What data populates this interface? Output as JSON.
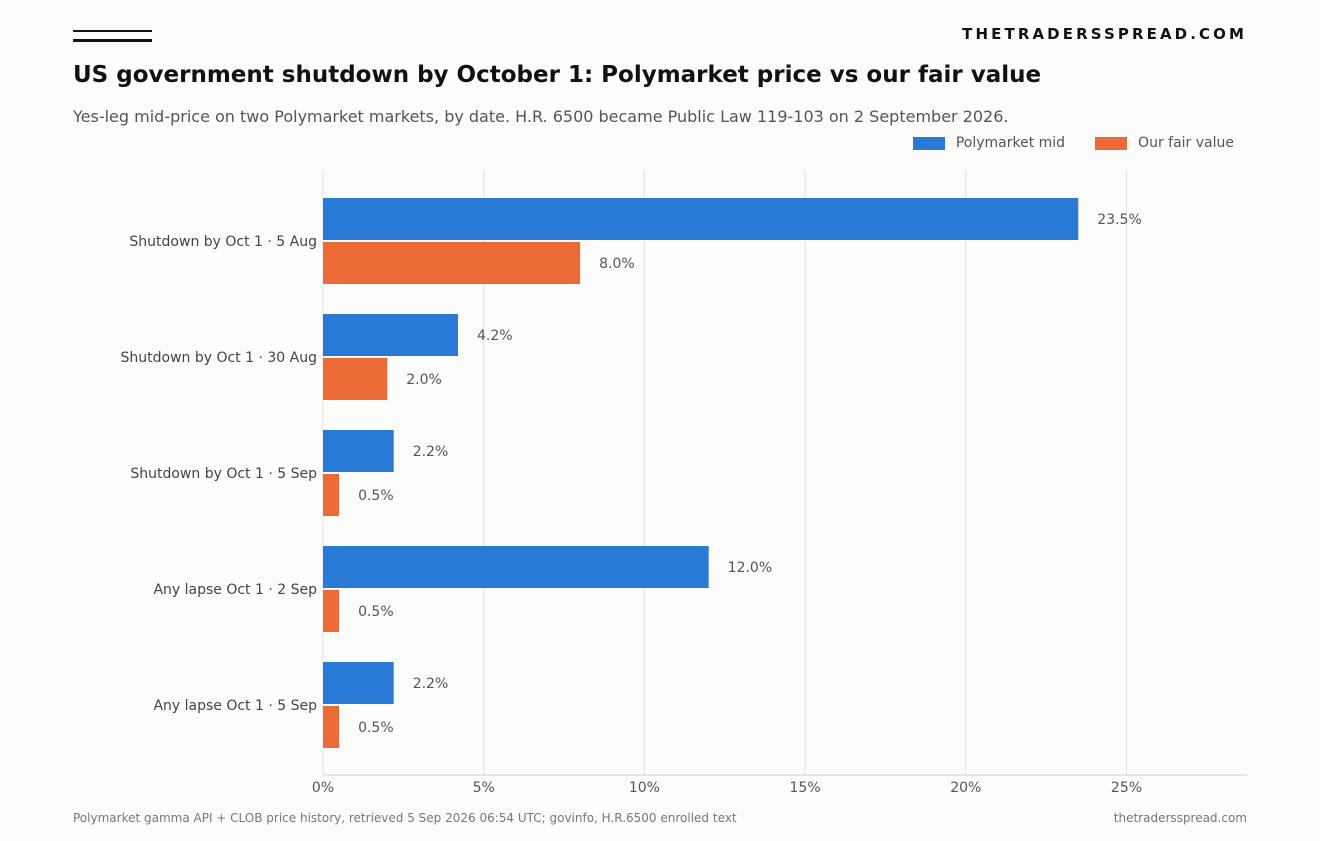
{
  "brand": "THETRADERSSPREAD.COM",
  "footer": {
    "source": "Polymarket gamma API + CLOB price history, retrieved 5 Sep 2026 06:54 UTC; govinfo, H.R.6500 enrolled text",
    "site": "thetradersspread.com"
  },
  "chart_data": {
    "type": "bar",
    "orientation": "horizontal",
    "title": "US government shutdown by October 1: Polymarket price vs our fair value",
    "subtitle": "Yes-leg mid-price on two Polymarket markets, by date. H.R. 6500 became Public Law 119-103 on 2 September 2026.",
    "categories": [
      "Shutdown by Oct 1 · 5 Aug",
      "Shutdown by Oct 1 · 30 Aug",
      "Shutdown by Oct 1 · 5 Sep",
      "Any lapse Oct 1 · 2 Sep",
      "Any lapse Oct 1 · 5 Sep"
    ],
    "series": [
      {
        "name": "Polymarket mid",
        "color": "#2979d6",
        "values": [
          23.5,
          4.2,
          2.2,
          12.0,
          2.2
        ],
        "labels": [
          "23.5%",
          "4.2%",
          "2.2%",
          "12.0%",
          "2.2%"
        ]
      },
      {
        "name": "Our fair value",
        "color": "#ec6a35",
        "values": [
          8.0,
          2.0,
          0.5,
          0.5,
          0.5
        ],
        "labels": [
          "8.0%",
          "2.0%",
          "0.5%",
          "0.5%",
          "0.5%"
        ]
      }
    ],
    "xlim": [
      0,
      28.75
    ],
    "xticks": [
      0,
      5,
      10,
      15,
      20,
      25
    ],
    "xtick_labels": [
      "0%",
      "5%",
      "10%",
      "15%",
      "20%",
      "25%"
    ],
    "grid": "vertical",
    "legend": "top-right"
  }
}
